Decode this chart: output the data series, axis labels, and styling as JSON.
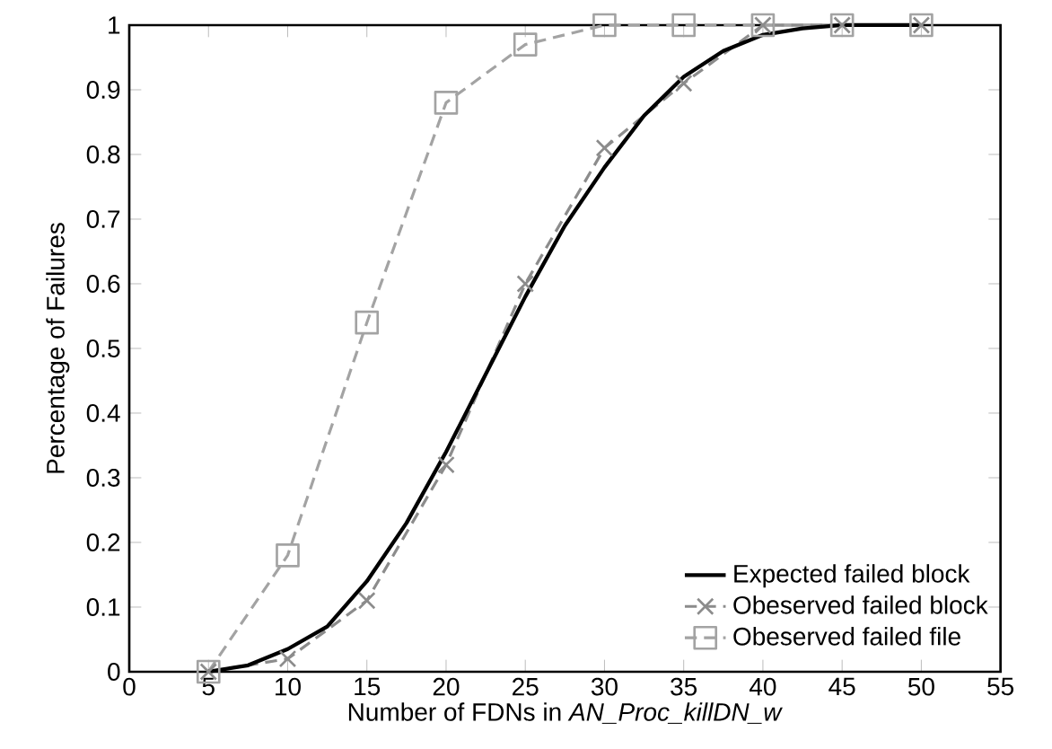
{
  "chart_data": {
    "type": "line",
    "xlabel": "Number of FDNs in *AN_Proc_killDN_w*",
    "ylabel": "Percentage of Failures",
    "xlim": [
      0,
      55
    ],
    "xticks": [
      0,
      5,
      10,
      15,
      20,
      25,
      30,
      35,
      40,
      45,
      50,
      55
    ],
    "ylim": [
      0,
      1
    ],
    "yticks": [
      0,
      0.1,
      0.2,
      0.3,
      0.4,
      0.5,
      0.6,
      0.7,
      0.8,
      0.9,
      1
    ],
    "legend": "bottom right",
    "series": [
      {
        "name": "Expected failed block",
        "color": "#000000",
        "marker": "none",
        "line_style": "solid",
        "x": [
          5,
          7.5,
          10,
          12.5,
          15,
          17.5,
          20,
          22.5,
          25,
          27.5,
          30,
          32.5,
          35,
          37.5,
          40,
          42.5,
          45,
          50
        ],
        "values": [
          0,
          0.01,
          0.035,
          0.07,
          0.14,
          0.23,
          0.34,
          0.46,
          0.58,
          0.69,
          0.78,
          0.86,
          0.92,
          0.96,
          0.985,
          0.995,
          1,
          1
        ]
      },
      {
        "name": "Obeserved failed block",
        "color": "#8c8c8c",
        "marker": "cross",
        "line_style": "dashed",
        "x": [
          5,
          10,
          15,
          20,
          25,
          30,
          35,
          40,
          45,
          50
        ],
        "values": [
          0,
          0.02,
          0.11,
          0.32,
          0.6,
          0.81,
          0.91,
          1,
          1,
          1
        ]
      },
      {
        "name": "Obeserved failed file",
        "color": "#a3a3a3",
        "marker": "square",
        "line_style": "dashed",
        "x": [
          5,
          10,
          15,
          20,
          25,
          30,
          35,
          40,
          45,
          50
        ],
        "values": [
          0,
          0.18,
          0.54,
          0.88,
          0.97,
          1,
          1,
          1,
          1,
          1
        ]
      }
    ]
  }
}
